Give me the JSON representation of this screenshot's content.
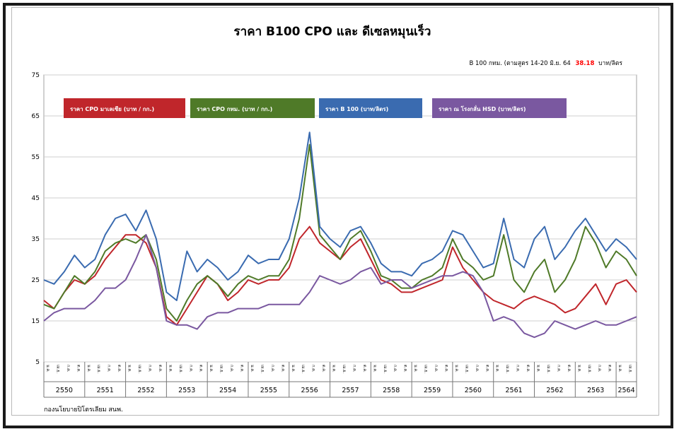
{
  "chart_data": {
    "type": "line",
    "title": "ราคา B100  CPO และ ดีเซลหมุนเร็ว",
    "note": {
      "prefix": "B 100 กทม. (ตามสูตร 14-20 มิ.ย. 64",
      "value": "38.18",
      "suffix": "บาท/ลิตร",
      "value_color": "#ff0000"
    },
    "source": "กองนโยบายปิโตรเลียม  สนพ.",
    "ylim": [
      5,
      75
    ],
    "yticks": [
      5,
      15,
      25,
      35,
      45,
      55,
      65,
      75
    ],
    "years": [
      "2550",
      "2551",
      "2552",
      "2553",
      "2554",
      "2555",
      "2556",
      "2557",
      "2558",
      "2559",
      "2560",
      "2561",
      "2562",
      "2563",
      "2564"
    ],
    "month_labels": [
      "ม.ค.",
      "เม.ย.",
      "ก.ค.",
      "ต.ค."
    ],
    "x_months": [
      0,
      3,
      6,
      9,
      12,
      15,
      18,
      21,
      24,
      27,
      30,
      33,
      36,
      39,
      42,
      45,
      48,
      51,
      54,
      57,
      60,
      63,
      66,
      69,
      72,
      75,
      78,
      81,
      84,
      87,
      90,
      93,
      96,
      99,
      102,
      105,
      108,
      111,
      114,
      117,
      120,
      123,
      126,
      129,
      132,
      135,
      138,
      141,
      144,
      147,
      150,
      153,
      156,
      159,
      162,
      165,
      168,
      171,
      174
    ],
    "series": [
      {
        "name": "ราคา CPO มาเลเซีย  (บาท / กก.)",
        "color": "#c0262b",
        "values": [
          20,
          18,
          22,
          25,
          24,
          26,
          30,
          33,
          36,
          36,
          34,
          28,
          16,
          14,
          18,
          22,
          26,
          24,
          20,
          22,
          25,
          24,
          25,
          25,
          28,
          35,
          38,
          34,
          32,
          30,
          33,
          35,
          30,
          25,
          24,
          22,
          22,
          23,
          24,
          25,
          33,
          28,
          25,
          22,
          20,
          19,
          18,
          20,
          21,
          20,
          19,
          17,
          18,
          21,
          24,
          19,
          24,
          25,
          22
        ]
      },
      {
        "name": "ราคา CPO กทม.  (บาท / กก.)",
        "color": "#4f7a28",
        "values": [
          19,
          18,
          22,
          26,
          24,
          27,
          32,
          34,
          35,
          34,
          36,
          30,
          18,
          15,
          20,
          24,
          26,
          24,
          21,
          24,
          26,
          25,
          26,
          26,
          30,
          40,
          58,
          36,
          33,
          30,
          35,
          37,
          32,
          26,
          25,
          23,
          23,
          25,
          26,
          28,
          35,
          30,
          28,
          25,
          26,
          36,
          25,
          22,
          27,
          30,
          22,
          25,
          30,
          38,
          34,
          28,
          32,
          30,
          26
        ]
      },
      {
        "name": "ราคา B 100  (บาท/ลิตร)",
        "color": "#3a6bb0",
        "values": [
          25,
          24,
          27,
          31,
          28,
          30,
          36,
          40,
          41,
          37,
          42,
          35,
          22,
          20,
          32,
          27,
          30,
          28,
          25,
          27,
          31,
          29,
          30,
          30,
          35,
          45,
          61,
          38,
          35,
          33,
          37,
          38,
          34,
          29,
          27,
          27,
          26,
          29,
          30,
          32,
          37,
          36,
          32,
          28,
          29,
          40,
          30,
          28,
          35,
          38,
          30,
          33,
          37,
          40,
          36,
          32,
          35,
          33,
          30
        ]
      },
      {
        "name": "ราคา ณ โรงกลั่น  HSD  (บาท/ลิตร)",
        "color": "#7a58a0",
        "values": [
          15,
          17,
          18,
          18,
          18,
          20,
          23,
          23,
          25,
          30,
          36,
          28,
          15,
          14,
          14,
          13,
          16,
          17,
          17,
          18,
          18,
          18,
          19,
          19,
          19,
          19,
          22,
          26,
          25,
          24,
          25,
          27,
          28,
          24,
          25,
          25,
          23,
          24,
          25,
          26,
          26,
          27,
          26,
          22,
          15,
          16,
          15,
          12,
          11,
          12,
          15,
          14,
          13,
          14,
          15,
          14,
          14,
          15,
          16
        ]
      }
    ]
  }
}
